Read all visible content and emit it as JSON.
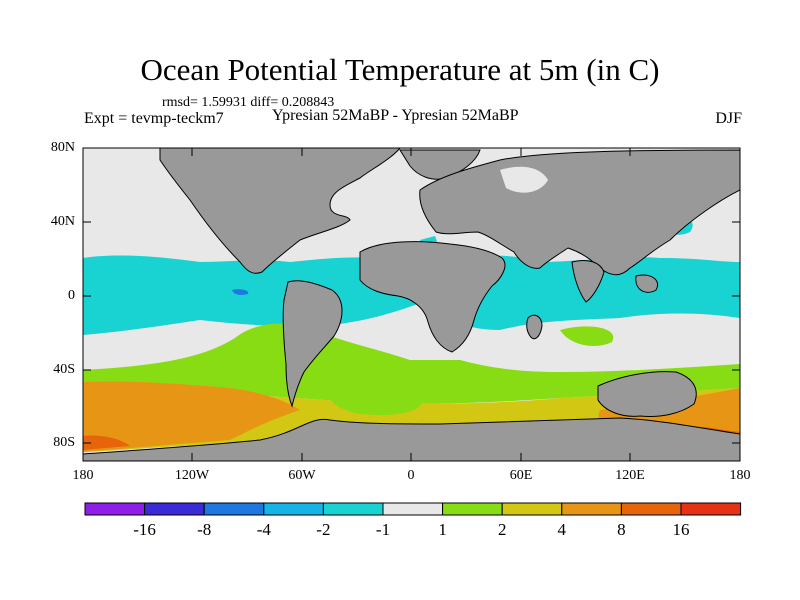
{
  "title": "Ocean Potential Temperature at 5m (in C)",
  "stats": "rmsd= 1.59931 diff= 0.208843",
  "experiment": "Expt = tevmp-teckm7",
  "subtitle": "Ypresian  52MaBP - Ypresian  52MaBP",
  "season": "DJF",
  "lat_ticks": [
    "80N",
    "40N",
    "0",
    "40S",
    "80S"
  ],
  "lon_ticks": [
    "180",
    "120W",
    "60W",
    "0",
    "60E",
    "120E",
    "180"
  ],
  "colorbar": {
    "labels": [
      "-16",
      "-8",
      "-4",
      "-2",
      "-1",
      "1",
      "2",
      "4",
      "8",
      "16"
    ],
    "colors": [
      "#8f1fe8",
      "#3a2ad8",
      "#1e78e0",
      "#14b4e6",
      "#19d2d2",
      "#e8e8e8",
      "#88dc14",
      "#d2c814",
      "#e69614",
      "#e6640a",
      "#e63214"
    ]
  },
  "colors": {
    "land": "#999999",
    "neutral": "#e8e8e8",
    "cyan": "#19d2d2",
    "light_blue": "#14b4e6",
    "blue": "#1e78e0",
    "green": "#88dc14",
    "yellow": "#d2c814",
    "orange": "#e69614",
    "dark_orange": "#e6640a",
    "red": "#e63214"
  }
}
